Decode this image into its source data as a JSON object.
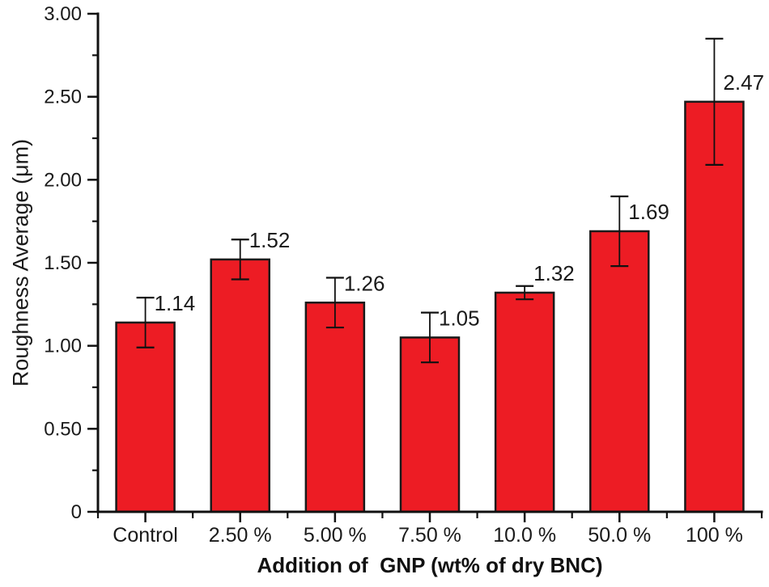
{
  "colors": {
    "background": "#ffffff",
    "bar_fill": "#ED1C24",
    "bar_stroke": "#1a1a1a",
    "axis": "#111111",
    "text": "#1a1a1a"
  },
  "chart_data": {
    "type": "bar",
    "title": "",
    "xlabel": "Addition of  GNP (wt% of dry BNC)",
    "ylabel": "Roughness Average (μm)",
    "categories": [
      "Control",
      "2.50 %",
      "5.00 %",
      "7.50 %",
      "10.0 %",
      "50.0 %",
      "100 %"
    ],
    "values": [
      1.14,
      1.52,
      1.26,
      1.05,
      1.32,
      1.69,
      2.47
    ],
    "errors": [
      0.15,
      0.12,
      0.15,
      0.15,
      0.04,
      0.21,
      0.38
    ],
    "bar_value_labels": [
      "1.14",
      "1.52",
      "1.26",
      "1.05",
      "1.32",
      "1.69",
      "2.47"
    ],
    "ylim": [
      0,
      3.0
    ],
    "ytick_values": [
      0,
      0.5,
      1.0,
      1.5,
      2.0,
      2.5,
      3.0
    ],
    "ytick_labels": [
      "0",
      "0.50",
      "1.00",
      "1.50",
      "2.00",
      "2.50",
      "3.00"
    ],
    "ytick_minor_values": [
      0.25,
      0.75,
      1.25,
      1.75,
      2.25,
      2.75
    ],
    "grid": false,
    "legend": "none"
  }
}
